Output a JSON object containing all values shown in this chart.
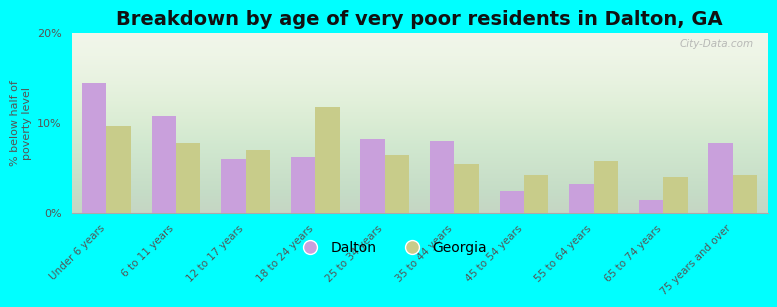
{
  "title": "Breakdown by age of very poor residents in Dalton, GA",
  "ylabel": "% below half of\npoverty level",
  "categories": [
    "Under 6 years",
    "6 to 11 years",
    "12 to 17 years",
    "18 to 24 years",
    "25 to 34 years",
    "35 to 44 years",
    "45 to 54 years",
    "55 to 64 years",
    "65 to 74 years",
    "75 years and over"
  ],
  "dalton_values": [
    14.5,
    10.8,
    6.0,
    6.2,
    8.2,
    8.0,
    2.5,
    3.2,
    1.5,
    7.8
  ],
  "georgia_values": [
    9.7,
    7.8,
    7.0,
    11.8,
    6.5,
    5.5,
    4.2,
    5.8,
    4.0,
    4.2
  ],
  "dalton_color": "#c9a0dc",
  "georgia_color": "#c8cc8a",
  "background_color": "#00ffff",
  "ylim": [
    0,
    20
  ],
  "yticks": [
    0,
    10,
    20
  ],
  "bar_width": 0.35,
  "title_fontsize": 14,
  "watermark": "City-Data.com"
}
